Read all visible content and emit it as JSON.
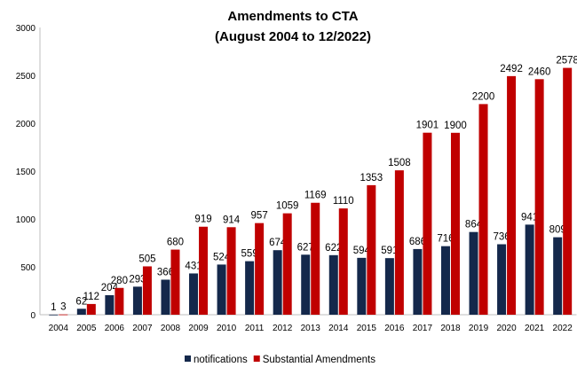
{
  "chart_data": {
    "type": "bar",
    "title": [
      "Amendments to CTA",
      "(August 2004 to 12/2022)"
    ],
    "xlabel": "",
    "ylabel": "",
    "ylim": [
      0,
      3000
    ],
    "yticks": [
      0,
      500,
      1000,
      1500,
      2000,
      2500,
      3000
    ],
    "grid": false,
    "legend": "bottom",
    "categories": [
      "2004",
      "2005",
      "2006",
      "2007",
      "2008",
      "2009",
      "2010",
      "2011",
      "2012",
      "2013",
      "2014",
      "2015",
      "2016",
      "2017",
      "2018",
      "2019",
      "2020",
      "2021",
      "2022"
    ],
    "series": [
      {
        "name": "notifications",
        "color": "#14284b",
        "values": [
          1,
          62,
          204,
          293,
          366,
          431,
          524,
          559,
          674,
          627,
          622,
          594,
          591,
          686,
          716,
          864,
          736,
          941,
          809
        ]
      },
      {
        "name": "Substantial Amendments",
        "color": "#c00000",
        "values": [
          3,
          112,
          280,
          505,
          680,
          919,
          914,
          957,
          1059,
          1169,
          1110,
          1353,
          1508,
          1901,
          1900,
          2200,
          2492,
          2460,
          2578
        ]
      }
    ]
  }
}
